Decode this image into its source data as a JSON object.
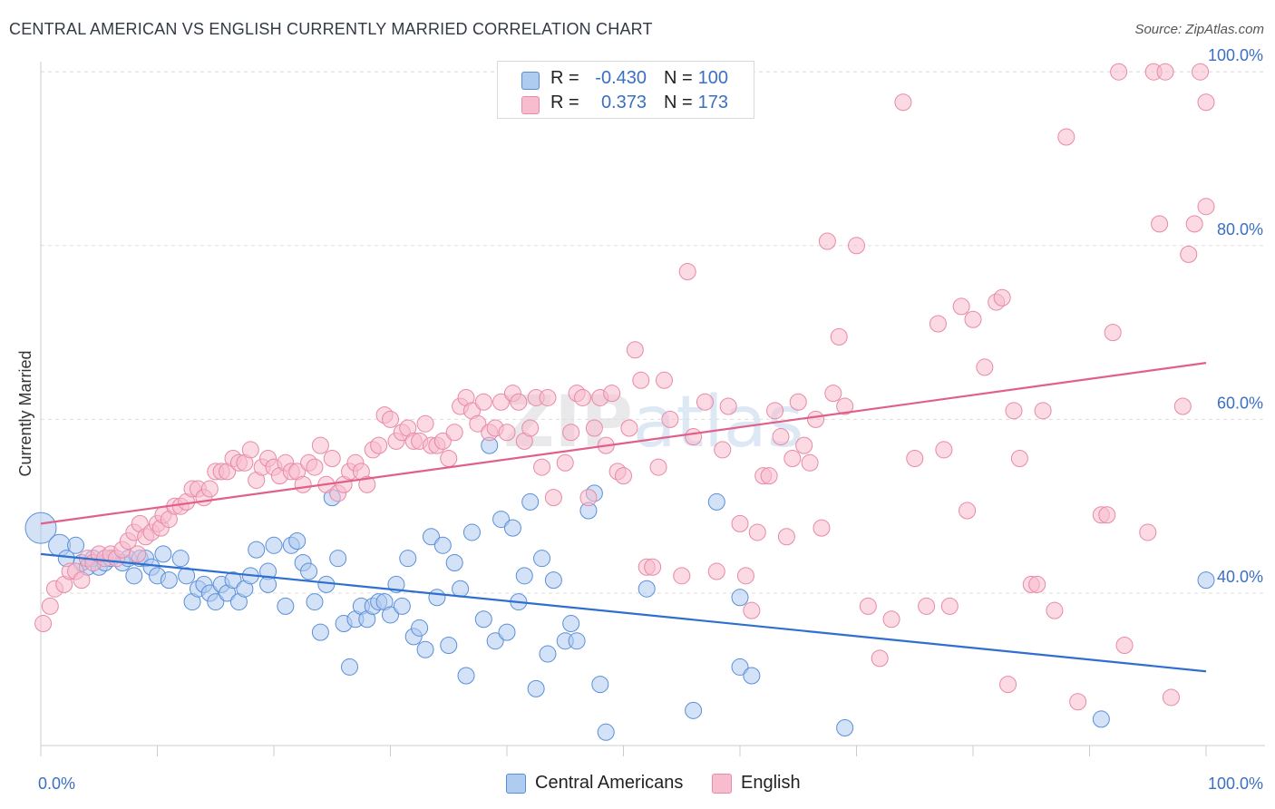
{
  "title": "CENTRAL AMERICAN VS ENGLISH CURRENTLY MARRIED CORRELATION CHART",
  "source": "Source: ZipAtlas.com",
  "legend": {
    "rows": [
      {
        "r_label": "R =",
        "r_value": "-0.430",
        "n_label": "N =",
        "n_value": "100"
      },
      {
        "r_label": "R =",
        "r_value": "0.373",
        "n_label": "N =",
        "n_value": "173"
      }
    ]
  },
  "bottom_legend": [
    "Central Americans",
    "English"
  ],
  "colors": {
    "blue_fill": "#aecbf0",
    "blue_stroke": "#5a8fd8",
    "blue_line": "#2e6fcf",
    "pink_fill": "#f7bccd",
    "pink_stroke": "#e889a6",
    "pink_line": "#e0608a",
    "axis_text": "#3a6fc4"
  },
  "chart_data": {
    "type": "scatter",
    "title": "CENTRAL AMERICAN VS ENGLISH CURRENTLY MARRIED CORRELATION CHART",
    "xlabel": "",
    "ylabel": "Currently Married",
    "xlim": [
      0,
      100
    ],
    "ylim": [
      20,
      103
    ],
    "x_tick_labels": [
      "0.0%",
      "100.0%"
    ],
    "y_ticks": [
      40,
      60,
      80,
      100
    ],
    "y_tick_labels": [
      "40.0%",
      "60.0%",
      "80.0%",
      "100.0%"
    ],
    "grid": "horizontal dashed",
    "watermark": "ZIPatlas",
    "series": [
      {
        "name": "Central Americans",
        "r": -0.43,
        "n": 100,
        "trend": [
          [
            0,
            44.5
          ],
          [
            100,
            31
          ]
        ],
        "points": [
          [
            0,
            47.5
          ],
          [
            1.6,
            45.5
          ],
          [
            2.2,
            44
          ],
          [
            3,
            45.5
          ],
          [
            3.5,
            43.5
          ],
          [
            4,
            43
          ],
          [
            4.5,
            44
          ],
          [
            5,
            43
          ],
          [
            5.5,
            43.5
          ],
          [
            6,
            44
          ],
          [
            7,
            43.5
          ],
          [
            7.5,
            44
          ],
          [
            8,
            42
          ],
          [
            8.5,
            44
          ],
          [
            9,
            44
          ],
          [
            9.5,
            43
          ],
          [
            10,
            42
          ],
          [
            10.5,
            44.5
          ],
          [
            11,
            41.5
          ],
          [
            12,
            44
          ],
          [
            12.5,
            42
          ],
          [
            13,
            39
          ],
          [
            13.5,
            40.5
          ],
          [
            14,
            41
          ],
          [
            14.5,
            40
          ],
          [
            15,
            39
          ],
          [
            15.5,
            41
          ],
          [
            16,
            40
          ],
          [
            16.5,
            41.5
          ],
          [
            17,
            39
          ],
          [
            17.5,
            40.5
          ],
          [
            18,
            42
          ],
          [
            18.5,
            45
          ],
          [
            19.5,
            42.5
          ],
          [
            19.5,
            41
          ],
          [
            20,
            45.5
          ],
          [
            21,
            38.5
          ],
          [
            21.5,
            45.5
          ],
          [
            22,
            46
          ],
          [
            22.5,
            43.5
          ],
          [
            23,
            42.5
          ],
          [
            23.5,
            39
          ],
          [
            24,
            35.5
          ],
          [
            24.5,
            41
          ],
          [
            25,
            51
          ],
          [
            25.5,
            44
          ],
          [
            26,
            36.5
          ],
          [
            26.5,
            31.5
          ],
          [
            27,
            37
          ],
          [
            27.5,
            38.5
          ],
          [
            28,
            37
          ],
          [
            28.5,
            38.5
          ],
          [
            29,
            39
          ],
          [
            29.5,
            39
          ],
          [
            30,
            37.5
          ],
          [
            30.5,
            41
          ],
          [
            31,
            38.5
          ],
          [
            31.5,
            44
          ],
          [
            32,
            35
          ],
          [
            32.5,
            36
          ],
          [
            33,
            33.5
          ],
          [
            33.5,
            46.5
          ],
          [
            34,
            39.5
          ],
          [
            34.5,
            45.5
          ],
          [
            35,
            34
          ],
          [
            35.5,
            43.5
          ],
          [
            36,
            40.5
          ],
          [
            36.5,
            30.5
          ],
          [
            37,
            47
          ],
          [
            38,
            37
          ],
          [
            38.5,
            57
          ],
          [
            39,
            34.5
          ],
          [
            39.5,
            48.5
          ],
          [
            40,
            35.5
          ],
          [
            40.5,
            47.5
          ],
          [
            41,
            39
          ],
          [
            41.5,
            42
          ],
          [
            42,
            50.5
          ],
          [
            42.5,
            29
          ],
          [
            43,
            44
          ],
          [
            43.5,
            33
          ],
          [
            44,
            41.5
          ],
          [
            45,
            34.5
          ],
          [
            45.5,
            36.5
          ],
          [
            46,
            34.5
          ],
          [
            47,
            49.5
          ],
          [
            47.5,
            51.5
          ],
          [
            48,
            29.5
          ],
          [
            48.5,
            24
          ],
          [
            52,
            40.5
          ],
          [
            56,
            26.5
          ],
          [
            58,
            50.5
          ],
          [
            60,
            39.5
          ],
          [
            60,
            31.5
          ],
          [
            61,
            30.5
          ],
          [
            69,
            24.5
          ],
          [
            91,
            25.5
          ],
          [
            100,
            41.5
          ]
        ]
      },
      {
        "name": "English",
        "r": 0.373,
        "n": 173,
        "trend": [
          [
            0,
            48
          ],
          [
            100,
            66.5
          ]
        ],
        "points": [
          [
            0.2,
            36.5
          ],
          [
            0.8,
            38.5
          ],
          [
            1.2,
            40.5
          ],
          [
            2,
            41
          ],
          [
            2.5,
            42.5
          ],
          [
            3,
            42.5
          ],
          [
            3.5,
            41.5
          ],
          [
            4,
            44
          ],
          [
            4.5,
            43.5
          ],
          [
            5,
            44.5
          ],
          [
            5.5,
            44
          ],
          [
            6,
            44.5
          ],
          [
            6.5,
            44
          ],
          [
            7,
            45
          ],
          [
            7.5,
            46
          ],
          [
            8,
            47
          ],
          [
            8.3,
            44.5
          ],
          [
            8.5,
            48
          ],
          [
            9,
            46.5
          ],
          [
            9.5,
            47
          ],
          [
            10,
            48
          ],
          [
            10.3,
            47.5
          ],
          [
            10.5,
            49
          ],
          [
            11,
            48.5
          ],
          [
            11.5,
            50
          ],
          [
            12,
            50
          ],
          [
            12.5,
            50.5
          ],
          [
            13,
            52
          ],
          [
            13.5,
            52
          ],
          [
            14,
            51
          ],
          [
            14.5,
            52
          ],
          [
            15,
            54
          ],
          [
            15.5,
            54
          ],
          [
            16,
            54
          ],
          [
            16.5,
            55.5
          ],
          [
            17,
            55
          ],
          [
            17.5,
            55
          ],
          [
            18,
            56.5
          ],
          [
            18.5,
            53
          ],
          [
            19,
            54.5
          ],
          [
            19.5,
            55.5
          ],
          [
            20,
            54.5
          ],
          [
            20.5,
            53.5
          ],
          [
            21,
            55
          ],
          [
            21.5,
            54
          ],
          [
            22,
            54
          ],
          [
            22.5,
            52.5
          ],
          [
            23,
            55
          ],
          [
            23.5,
            54.5
          ],
          [
            24,
            57
          ],
          [
            24.5,
            52.5
          ],
          [
            25,
            55.5
          ],
          [
            25.5,
            51.5
          ],
          [
            26,
            52.5
          ],
          [
            26.5,
            54
          ],
          [
            27,
            55
          ],
          [
            27.5,
            54
          ],
          [
            28,
            52.5
          ],
          [
            28.5,
            56.5
          ],
          [
            29,
            57
          ],
          [
            29.5,
            60.5
          ],
          [
            30,
            60
          ],
          [
            30.5,
            57.5
          ],
          [
            31,
            58.5
          ],
          [
            31.5,
            59
          ],
          [
            32,
            57.5
          ],
          [
            32.5,
            57.5
          ],
          [
            33,
            59.5
          ],
          [
            33.5,
            57
          ],
          [
            34,
            57
          ],
          [
            34.5,
            57.5
          ],
          [
            35,
            55.5
          ],
          [
            35.5,
            58.5
          ],
          [
            36,
            61.5
          ],
          [
            36.5,
            62.5
          ],
          [
            37,
            61
          ],
          [
            37.5,
            59.5
          ],
          [
            38,
            62
          ],
          [
            38.5,
            58.5
          ],
          [
            39,
            59
          ],
          [
            39.5,
            62
          ],
          [
            40,
            58.5
          ],
          [
            40.5,
            63
          ],
          [
            41,
            62
          ],
          [
            41.5,
            57.5
          ],
          [
            42,
            59
          ],
          [
            42.5,
            62.5
          ],
          [
            43,
            54.5
          ],
          [
            43.5,
            62.5
          ],
          [
            44,
            51
          ],
          [
            45,
            55
          ],
          [
            45.5,
            58.5
          ],
          [
            46,
            63
          ],
          [
            46.5,
            62.5
          ],
          [
            47,
            51
          ],
          [
            47.5,
            59
          ],
          [
            48,
            62.5
          ],
          [
            48.5,
            57
          ],
          [
            49,
            63
          ],
          [
            49.5,
            54
          ],
          [
            50,
            53.5
          ],
          [
            50.5,
            59
          ],
          [
            51,
            68
          ],
          [
            51.5,
            64.5
          ],
          [
            52,
            43
          ],
          [
            52.5,
            43
          ],
          [
            53,
            54.5
          ],
          [
            53.5,
            64.5
          ],
          [
            54,
            60
          ],
          [
            55,
            42
          ],
          [
            55.5,
            77
          ],
          [
            56,
            58
          ],
          [
            57,
            62
          ],
          [
            58,
            42.5
          ],
          [
            58.5,
            56.5
          ],
          [
            59,
            61.5
          ],
          [
            60,
            48
          ],
          [
            60.5,
            42
          ],
          [
            61,
            38
          ],
          [
            61.5,
            47
          ],
          [
            62,
            53.5
          ],
          [
            62.5,
            53.5
          ],
          [
            63,
            61
          ],
          [
            63.5,
            58
          ],
          [
            64,
            46.5
          ],
          [
            64.5,
            55.5
          ],
          [
            65,
            62
          ],
          [
            65.5,
            57
          ],
          [
            66,
            55
          ],
          [
            66.5,
            60
          ],
          [
            67,
            47.5
          ],
          [
            67.5,
            80.5
          ],
          [
            68,
            63
          ],
          [
            68.5,
            69.5
          ],
          [
            69,
            61.5
          ],
          [
            70,
            80
          ],
          [
            71,
            38.5
          ],
          [
            72,
            32.5
          ],
          [
            73,
            37
          ],
          [
            74,
            96.5
          ],
          [
            75,
            55.5
          ],
          [
            76,
            38.5
          ],
          [
            77,
            71
          ],
          [
            77.5,
            56.5
          ],
          [
            78,
            38.5
          ],
          [
            79,
            73
          ],
          [
            79.5,
            49.5
          ],
          [
            80,
            71.5
          ],
          [
            81,
            66
          ],
          [
            82,
            73.5
          ],
          [
            82.5,
            74
          ],
          [
            83,
            29.5
          ],
          [
            83.5,
            61
          ],
          [
            84,
            55.5
          ],
          [
            85,
            41
          ],
          [
            85.5,
            41
          ],
          [
            86,
            61
          ],
          [
            87,
            38
          ],
          [
            88,
            92.5
          ],
          [
            89,
            27.5
          ],
          [
            91,
            49
          ],
          [
            91.5,
            49
          ],
          [
            92,
            70
          ],
          [
            92.5,
            100
          ],
          [
            93,
            34
          ],
          [
            95,
            47
          ],
          [
            95.5,
            100
          ],
          [
            96,
            82.5
          ],
          [
            96.5,
            100
          ],
          [
            97,
            28
          ],
          [
            98,
            61.5
          ],
          [
            98.5,
            79
          ],
          [
            99,
            82.5
          ],
          [
            99.5,
            100
          ],
          [
            100,
            84.5
          ],
          [
            100,
            96.5
          ]
        ]
      }
    ]
  }
}
